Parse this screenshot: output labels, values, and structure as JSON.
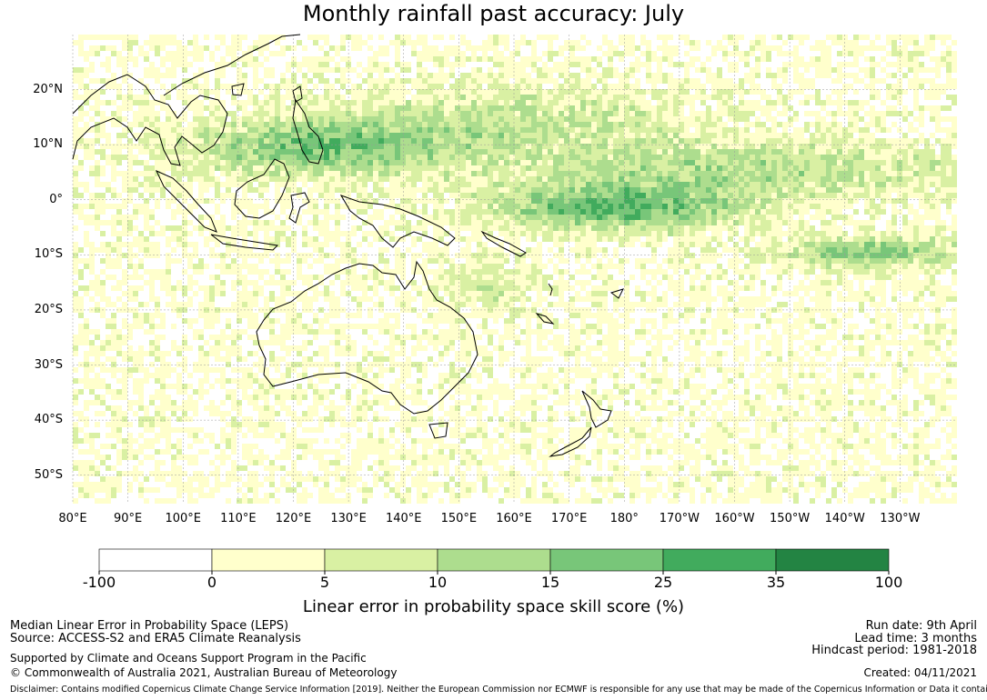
{
  "title": "Monthly rainfall past accuracy: July",
  "map": {
    "lat_labels": [
      "20°N",
      "10°N",
      "0°",
      "10°S",
      "20°S",
      "30°S",
      "40°S",
      "50°S"
    ],
    "lat_values": [
      20,
      10,
      0,
      -10,
      -20,
      -30,
      -40,
      -50
    ],
    "lon_labels": [
      "80°E",
      "90°E",
      "100°E",
      "110°E",
      "120°E",
      "130°E",
      "140°E",
      "150°E",
      "160°E",
      "170°E",
      "180°",
      "170°W",
      "160°W",
      "150°W",
      "140°W",
      "130°W"
    ],
    "lon_values": [
      80,
      90,
      100,
      110,
      120,
      130,
      140,
      150,
      160,
      170,
      180,
      190,
      200,
      210,
      220,
      230
    ],
    "lon_range": [
      80,
      240
    ],
    "lat_range": [
      -55,
      30
    ],
    "grid": true
  },
  "colorbar": {
    "ticks": [
      "-100",
      "0",
      "5",
      "10",
      "15",
      "25",
      "35",
      "100"
    ],
    "colors": [
      "#ffffff",
      "#ffffcc",
      "#d9f0a3",
      "#addd8e",
      "#78c679",
      "#41ab5d",
      "#238443"
    ],
    "label": "Linear error in probability space skill score (%)"
  },
  "info": {
    "method": "Median Linear Error in Probability Space (LEPS)",
    "source": "Source: ACCESS-S2 and ERA5 Climate Reanalysis",
    "support": "Supported by Climate and Oceans Support Program in the Pacific",
    "copyright": "© Commonwealth of Australia 2021, Australian Bureau of Meteorology",
    "run_date": "Run date: 9th April",
    "lead_time": "Lead time: 3 months",
    "hindcast": "Hindcast period: 1981-2018",
    "created": "Created: 04/11/2021",
    "disclaimer": "Disclaimer: Contains modified Copernicus Climate Change Service Information [2019]. Neither the European Commission nor ECMWF is responsible for any use that may be made of the Copernicus Information or Data it contains."
  }
}
